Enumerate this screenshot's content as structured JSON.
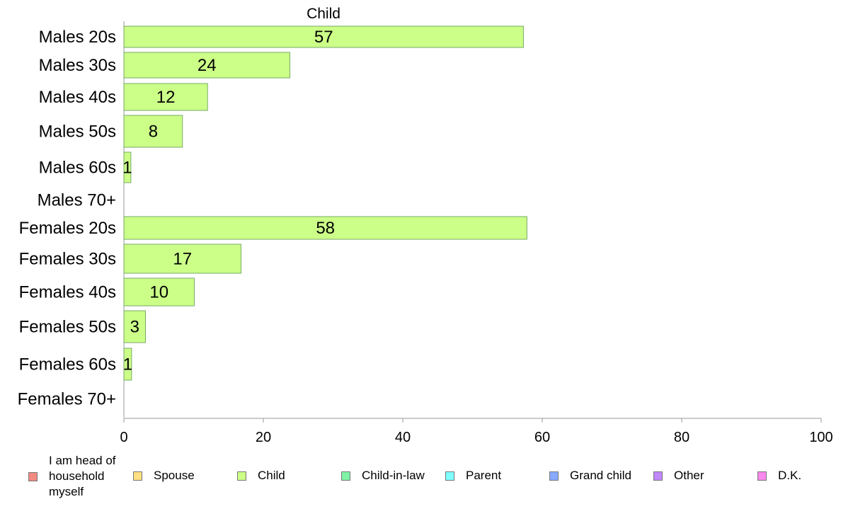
{
  "chart_data": {
    "type": "bar",
    "orientation": "horizontal",
    "title": "Child",
    "categories": [
      "Males 20s",
      "Males 30s",
      "Males 40s",
      "Males 50s",
      "Males 60s",
      "Males 70+",
      "Females 20s",
      "Females 30s",
      "Females 40s",
      "Females 50s",
      "Females 60s",
      "Females 70+"
    ],
    "values": [
      57.3,
      23.8,
      12.0,
      8.4,
      1.0,
      0,
      57.8,
      16.8,
      10.1,
      3.1,
      1.1,
      0
    ],
    "data_labels": [
      "57",
      "24",
      "12",
      "8",
      "1",
      "",
      "58",
      "17",
      "10",
      "3",
      "1",
      ""
    ],
    "xlim": [
      0,
      100
    ],
    "xticks": [
      "0",
      "20",
      "40",
      "60",
      "80",
      "100"
    ],
    "grid": false,
    "bar_color": "#ccff88",
    "bar_edge_color": "#77aa66",
    "legend": {
      "placement": "bottom",
      "entries": [
        {
          "label": "I am head of household myself",
          "color": "#f28b82"
        },
        {
          "label": "Spouse",
          "color": "#ffe082"
        },
        {
          "label": "Child",
          "color": "#ccff88"
        },
        {
          "label": "Child-in-law",
          "color": "#80f2a6"
        },
        {
          "label": "Parent",
          "color": "#80ffff"
        },
        {
          "label": "Grand child",
          "color": "#88aaff"
        },
        {
          "label": "Other",
          "color": "#c088f8"
        },
        {
          "label": "D.K.",
          "color": "#f888ee"
        }
      ]
    }
  }
}
